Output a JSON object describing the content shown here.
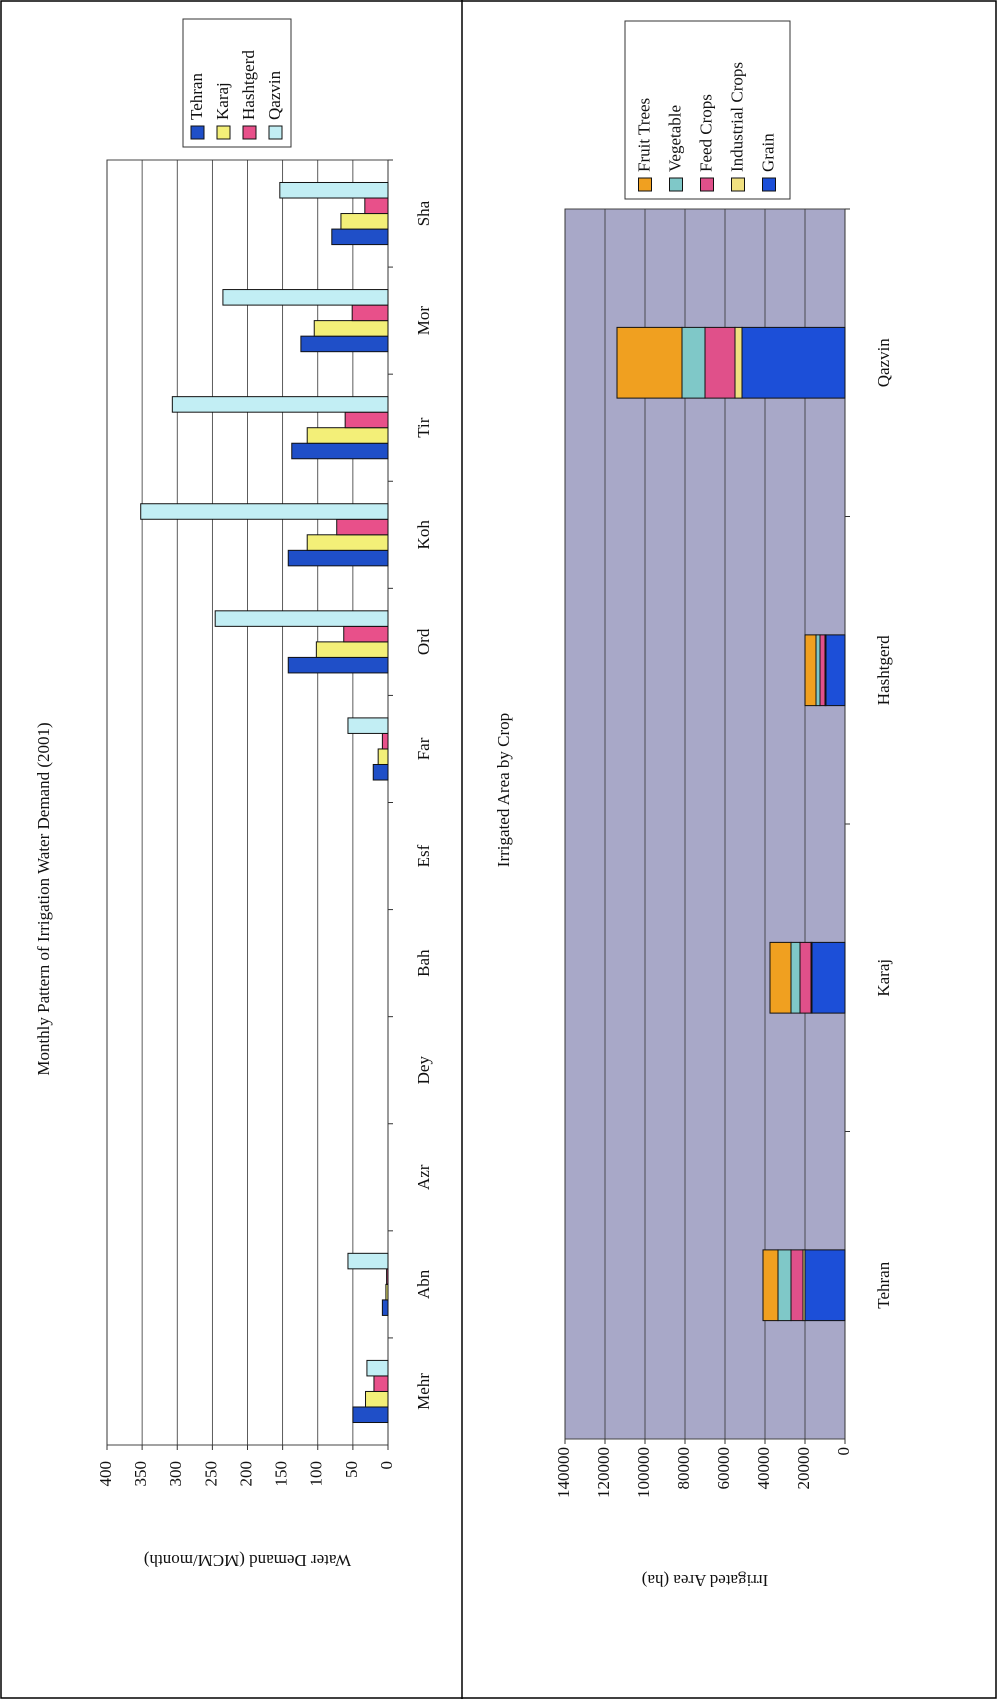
{
  "chart_data": [
    {
      "type": "bar",
      "title": "Monthly Pattern of Irrigation Water Demand (2001)",
      "y_label": "Water Demand (MCM/month)",
      "categories": [
        "Mehr",
        "Abn",
        "Azr",
        "Dey",
        "Bah",
        "Esf",
        "Far",
        "Ord",
        "Koh",
        "Tir",
        "Mor",
        "Sha"
      ],
      "series": [
        {
          "name": "Tehran",
          "color": "#1f4fc8",
          "values": [
            50,
            8,
            0,
            0,
            0,
            0,
            21,
            142,
            142,
            137,
            124,
            80
          ]
        },
        {
          "name": "Karaj",
          "color": "#f3ef78",
          "values": [
            32,
            3,
            0,
            0,
            0,
            0,
            14,
            102,
            115,
            115,
            105,
            67
          ]
        },
        {
          "name": "Hashtgerd",
          "color": "#e8508a",
          "values": [
            20,
            2,
            0,
            0,
            0,
            0,
            8,
            63,
            73,
            61,
            51,
            33
          ]
        },
        {
          "name": "Qazvin",
          "color": "#c2eef4",
          "values": [
            30,
            57,
            0,
            0,
            0,
            0,
            57,
            246,
            352,
            307,
            235,
            154
          ]
        }
      ],
      "ylim": [
        0,
        400
      ],
      "yticks": [
        0,
        50,
        100,
        150,
        200,
        250,
        300,
        350,
        400
      ],
      "grid": true,
      "legend": "top-right"
    },
    {
      "type": "stacked_bar",
      "title": "Irrigated Area by Crop",
      "y_label": "Irrigated Area (ha)",
      "categories": [
        "Tehran",
        "Karaj",
        "Hashtgerd",
        "Qazvin"
      ],
      "series": [
        {
          "name": "Fruit Trees",
          "color": "#f0a020",
          "values": [
            7500,
            10500,
            5500,
            32500
          ]
        },
        {
          "name": "Vegetable",
          "color": "#7fc8c8",
          "values": [
            6500,
            4500,
            2000,
            11500
          ]
        },
        {
          "name": "Feed Crops",
          "color": "#e0508a",
          "values": [
            6000,
            5500,
            2500,
            15000
          ]
        },
        {
          "name": "Industrial Crops",
          "color": "#f0e080",
          "values": [
            1000,
            500,
            500,
            3500
          ]
        },
        {
          "name": "Grain",
          "color": "#1c4fd8",
          "values": [
            20000,
            16500,
            9500,
            51500
          ]
        }
      ],
      "ylim": [
        0,
        140000
      ],
      "yticks": [
        0,
        20000,
        40000,
        60000,
        80000,
        100000,
        120000,
        140000
      ],
      "grid": true,
      "plot_background": "#a8a8c8",
      "legend": "top-right"
    }
  ]
}
